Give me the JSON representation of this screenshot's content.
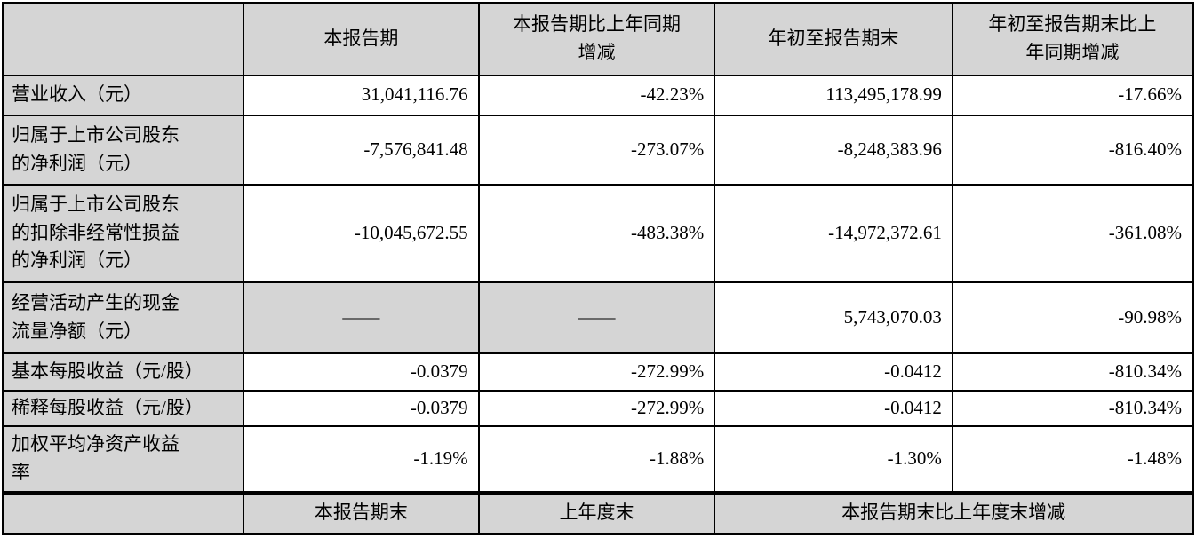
{
  "table": {
    "header": {
      "blank": "",
      "period": "本报告期",
      "period_yoy": "本报告期比上年同期\n增减",
      "ytd": "年初至报告期末",
      "ytd_yoy": "年初至报告期末比上\n年同期增减"
    },
    "rows": [
      {
        "label": "营业收入（元）",
        "period": "31,041,116.76",
        "period_yoy": "-42.23%",
        "ytd": "113,495,178.99",
        "ytd_yoy": "-17.66%"
      },
      {
        "label": "归属于上市公司股东\n的净利润（元）",
        "period": "-7,576,841.48",
        "period_yoy": "-273.07%",
        "ytd": "-8,248,383.96",
        "ytd_yoy": "-816.40%"
      },
      {
        "label": "归属于上市公司股东\n的扣除非经常性损益\n的净利润（元）",
        "period": "-10,045,672.55",
        "period_yoy": "-483.38%",
        "ytd": "-14,972,372.61",
        "ytd_yoy": "-361.08%"
      },
      {
        "label": "经营活动产生的现金\n流量净额（元）",
        "period": "——",
        "period_yoy": "——",
        "ytd": "5,743,070.03",
        "ytd_yoy": "-90.98%"
      },
      {
        "label": "基本每股收益（元/股）",
        "period": "-0.0379",
        "period_yoy": "-272.99%",
        "ytd": "-0.0412",
        "ytd_yoy": "-810.34%"
      },
      {
        "label": "稀释每股收益（元/股）",
        "period": "-0.0379",
        "period_yoy": "-272.99%",
        "ytd": "-0.0412",
        "ytd_yoy": "-810.34%"
      },
      {
        "label": "加权平均净资产收益\n率",
        "period": "-1.19%",
        "period_yoy": "-1.88%",
        "ytd": "-1.30%",
        "ytd_yoy": "-1.48%"
      }
    ],
    "footer": {
      "blank": "",
      "period_end": "本报告期末",
      "prior_year_end": "上年度末",
      "period_end_change": "本报告期末比上年度末增减"
    }
  },
  "colors": {
    "shaded_bg": "#d5d5d5",
    "border": "#000000",
    "dash_text": "#595959",
    "text": "#000000"
  }
}
